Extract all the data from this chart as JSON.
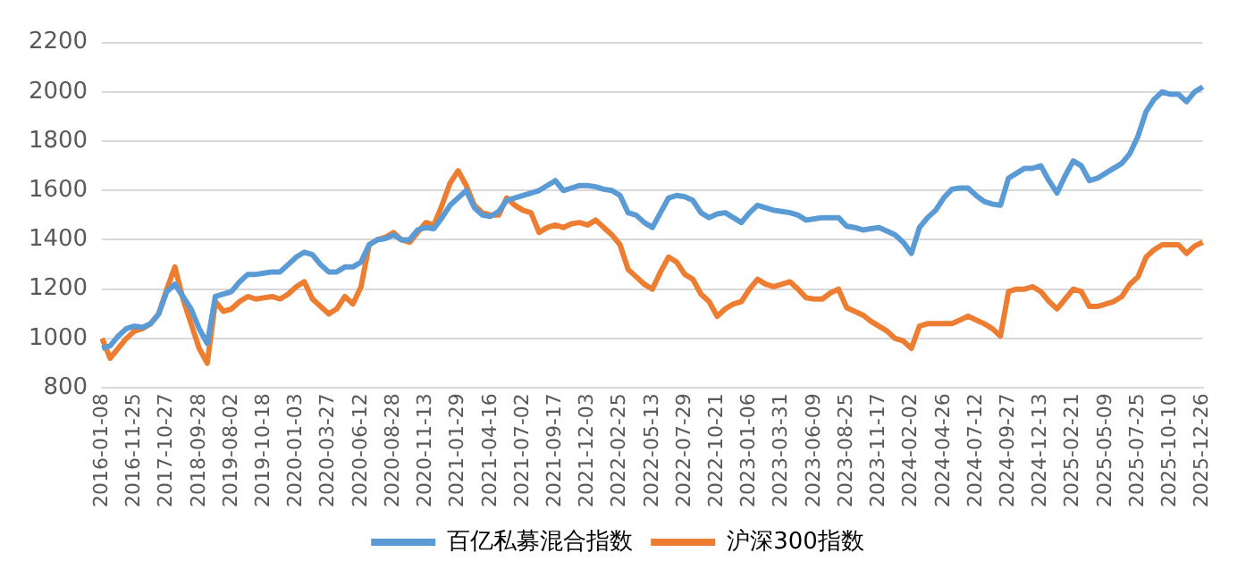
{
  "chart_data": {
    "type": "line",
    "categories": [
      "2016-01-08",
      null,
      null,
      null,
      "2016-11-25",
      null,
      null,
      null,
      "2017-10-27",
      null,
      null,
      null,
      "2018-09-28",
      null,
      null,
      null,
      "2019-08-02",
      null,
      null,
      null,
      "2019-10-18",
      null,
      null,
      null,
      "2020-01-03",
      null,
      null,
      null,
      "2020-03-27",
      null,
      null,
      null,
      "2020-06-12",
      null,
      null,
      null,
      "2020-08-28",
      null,
      null,
      null,
      "2020-11-13",
      null,
      null,
      null,
      "2021-01-29",
      null,
      null,
      null,
      "2021-04-16",
      null,
      null,
      null,
      "2021-07-02",
      null,
      null,
      null,
      "2021-09-17",
      null,
      null,
      null,
      "2021-12-03",
      null,
      null,
      null,
      "2022-02-25",
      null,
      null,
      null,
      "2022-05-13",
      null,
      null,
      null,
      "2022-07-29",
      null,
      null,
      null,
      "2022-10-21",
      null,
      null,
      null,
      "2023-01-06",
      null,
      null,
      null,
      "2023-03-31",
      null,
      null,
      null,
      "2023-06-09",
      null,
      null,
      null,
      "2023-08-25",
      null,
      null,
      null,
      "2023-11-17",
      null,
      null,
      null,
      "2024-02-02",
      null,
      null,
      null,
      "2024-04-26",
      null,
      null,
      null,
      "2024-07-12",
      null,
      null,
      null,
      "2024-09-27",
      null,
      null,
      null,
      "2024-12-13",
      null,
      null,
      null,
      "2025-02-21",
      null,
      null,
      null,
      "2025-05-09",
      null,
      null,
      null,
      "2025-07-25",
      null,
      null,
      null,
      "2025-10-10",
      null,
      null,
      null,
      "2025-12-26"
    ],
    "series": [
      {
        "name": "百亿私募混合指数",
        "color": "#5b9bd5",
        "values": [
          960,
          970,
          1010,
          1040,
          1050,
          1045,
          1060,
          1100,
          1190,
          1220,
          1170,
          1120,
          1040,
          980,
          1170,
          1180,
          1190,
          1230,
          1260,
          1260,
          1265,
          1270,
          1270,
          1300,
          1330,
          1350,
          1340,
          1300,
          1270,
          1270,
          1290,
          1290,
          1310,
          1380,
          1400,
          1405,
          1420,
          1400,
          1400,
          1440,
          1450,
          1445,
          1490,
          1540,
          1570,
          1600,
          1530,
          1500,
          1495,
          1515,
          1560,
          1570,
          1580,
          1590,
          1600,
          1620,
          1640,
          1600,
          1610,
          1620,
          1620,
          1615,
          1605,
          1600,
          1580,
          1510,
          1500,
          1470,
          1450,
          1510,
          1570,
          1580,
          1575,
          1560,
          1510,
          1490,
          1505,
          1510,
          1490,
          1470,
          1510,
          1540,
          1530,
          1520,
          1515,
          1510,
          1500,
          1480,
          1485,
          1490,
          1490,
          1490,
          1455,
          1450,
          1440,
          1445,
          1450,
          1435,
          1420,
          1390,
          1345,
          1450,
          1490,
          1520,
          1570,
          1605,
          1610,
          1610,
          1580,
          1555,
          1545,
          1540,
          1650,
          1670,
          1690,
          1690,
          1700,
          1640,
          1590,
          1660,
          1720,
          1700,
          1640,
          1650,
          1670,
          1690,
          1710,
          1750,
          1820,
          1920,
          1970,
          2000,
          1990,
          1990,
          1960,
          2000,
          2020
        ]
      },
      {
        "name": "沪深300指数",
        "color": "#ed7d31",
        "values": [
          1000,
          920,
          960,
          1000,
          1030,
          1040,
          1060,
          1100,
          1200,
          1290,
          1160,
          1060,
          960,
          900,
          1150,
          1110,
          1120,
          1150,
          1170,
          1160,
          1165,
          1170,
          1160,
          1180,
          1210,
          1230,
          1160,
          1130,
          1100,
          1120,
          1170,
          1140,
          1210,
          1380,
          1400,
          1410,
          1430,
          1400,
          1390,
          1430,
          1470,
          1460,
          1540,
          1630,
          1680,
          1620,
          1540,
          1510,
          1500,
          1500,
          1570,
          1540,
          1520,
          1510,
          1430,
          1450,
          1460,
          1450,
          1465,
          1470,
          1460,
          1480,
          1450,
          1420,
          1380,
          1280,
          1250,
          1220,
          1200,
          1270,
          1330,
          1310,
          1260,
          1240,
          1180,
          1150,
          1090,
          1120,
          1140,
          1150,
          1200,
          1240,
          1220,
          1210,
          1220,
          1230,
          1200,
          1165,
          1160,
          1160,
          1185,
          1200,
          1125,
          1110,
          1095,
          1070,
          1050,
          1030,
          1000,
          990,
          960,
          1050,
          1060,
          1060,
          1060,
          1060,
          1075,
          1090,
          1075,
          1060,
          1040,
          1010,
          1190,
          1200,
          1200,
          1210,
          1190,
          1150,
          1120,
          1160,
          1200,
          1190,
          1130,
          1130,
          1140,
          1150,
          1170,
          1220,
          1250,
          1330,
          1360,
          1380,
          1380,
          1380,
          1345,
          1375,
          1390
        ]
      }
    ],
    "ylim": [
      800,
      2200
    ],
    "yticks": [
      800,
      1000,
      1200,
      1400,
      1600,
      1800,
      2000,
      2200
    ],
    "grid": "y",
    "legend": "bottom",
    "marker": "none",
    "line_style": "solid"
  }
}
